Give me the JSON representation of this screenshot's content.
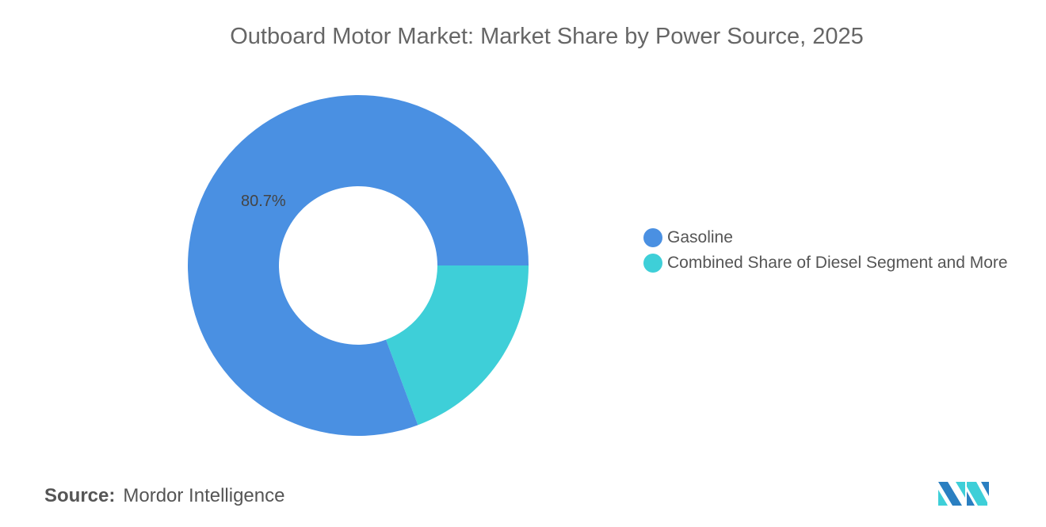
{
  "chart_data": {
    "type": "pie",
    "variant": "donut",
    "title": "Outboard Motor Market: Market Share by Power Source, 2025",
    "series": [
      {
        "name": "Gasoline",
        "value": 80.7,
        "label": "80.7%",
        "color": "#4a90e2"
      },
      {
        "name": "Combined Share of Diesel Segment and More",
        "value": 19.3,
        "label": "",
        "color": "#3ecfd8"
      }
    ],
    "legend_position": "right"
  },
  "source": {
    "label": "Source:",
    "text": "Mordor Intelligence"
  },
  "logo": {
    "text": "Mordor Intelligence"
  }
}
